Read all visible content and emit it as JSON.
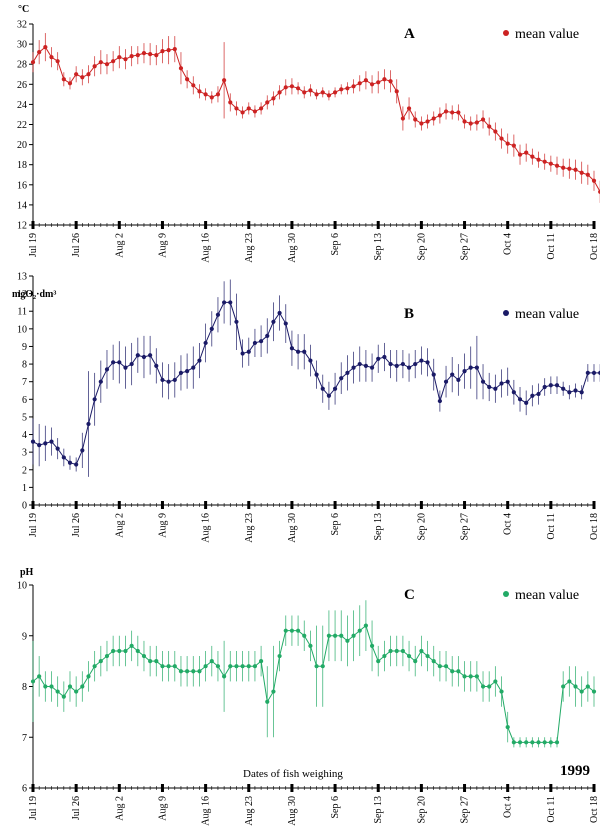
{
  "x_dates": [
    "Jul 19",
    "Jul 26",
    "Aug 2",
    "Aug 9",
    "Aug 16",
    "Aug 23",
    "Aug 30",
    "Sep 6",
    "Sep 13",
    "Sep 20",
    "Sep 27",
    "Oct 4",
    "Oct 11",
    "Oct 18"
  ],
  "x_range": [
    "Jul 19",
    "Oct 18"
  ],
  "xlabel": "Dates of fish weighing",
  "year": "1999",
  "chart_data": [
    {
      "type": "line",
      "panel": "A",
      "ylabel": "°C",
      "legend": "mean value",
      "legend_position": "top-right",
      "color": "#cc2222",
      "ylim": [
        12,
        32
      ],
      "yticks": [
        12,
        14,
        16,
        18,
        20,
        22,
        24,
        26,
        28,
        30,
        32
      ],
      "x_start": "Jul 19",
      "x_step_days": 1,
      "values": [
        28.2,
        29.2,
        29.7,
        28.7,
        28.3,
        26.5,
        26.1,
        27.0,
        26.7,
        27.0,
        27.8,
        28.2,
        28.0,
        28.3,
        28.7,
        28.5,
        28.8,
        28.9,
        29.1,
        29.0,
        28.9,
        29.3,
        29.4,
        29.5,
        27.6,
        26.5,
        25.9,
        25.3,
        25.0,
        24.7,
        25.0,
        26.4,
        24.2,
        23.6,
        23.2,
        23.6,
        23.3,
        23.6,
        24.2,
        24.6,
        25.2,
        25.7,
        25.8,
        25.6,
        25.2,
        25.4,
        25.0,
        25.2,
        24.9,
        25.2,
        25.5,
        25.6,
        25.8,
        26.1,
        26.4,
        26.0,
        26.2,
        26.5,
        26.3,
        25.3,
        22.6,
        23.6,
        22.5,
        22.1,
        22.3,
        22.6,
        22.9,
        23.3,
        23.2,
        23.2,
        22.3,
        22.1,
        22.2,
        22.5,
        21.8,
        21.3,
        20.6,
        20.1,
        19.9,
        19.0,
        19.2,
        18.8,
        18.5,
        18.3,
        18.1,
        17.9,
        17.7,
        17.6,
        17.5,
        17.2,
        17.0,
        16.4,
        15.3,
        15.4
      ],
      "error": [
        1.0,
        1.2,
        1.4,
        1.0,
        0.9,
        0.7,
        0.6,
        0.8,
        0.8,
        0.9,
        1.0,
        1.2,
        1.0,
        1.0,
        1.1,
        1.0,
        1.0,
        0.9,
        1.0,
        1.1,
        1.0,
        1.2,
        1.4,
        1.3,
        1.6,
        0.9,
        0.9,
        0.7,
        0.6,
        0.6,
        0.8,
        3.8,
        0.9,
        0.7,
        0.6,
        0.6,
        0.6,
        0.6,
        0.7,
        0.7,
        0.7,
        0.8,
        0.8,
        0.6,
        0.6,
        0.6,
        0.5,
        0.5,
        0.5,
        0.5,
        0.5,
        0.6,
        0.7,
        0.8,
        0.9,
        0.9,
        1.1,
        1.0,
        1.1,
        1.2,
        1.2,
        1.1,
        0.8,
        0.7,
        0.7,
        0.7,
        0.8,
        0.8,
        0.7,
        0.8,
        0.7,
        0.7,
        0.8,
        0.9,
        0.9,
        0.9,
        1.0,
        1.0,
        1.1,
        1.0,
        0.9,
        0.8,
        0.8,
        0.8,
        0.8,
        0.9,
        0.9,
        1.0,
        1.0,
        1.1,
        1.0,
        1.0,
        1.1,
        1.2
      ]
    },
    {
      "type": "line",
      "panel": "B",
      "ylabel": "mgO₂·dm³",
      "legend": "mean value",
      "legend_position": "top-right",
      "color": "#1a1a66",
      "ylim": [
        0,
        13
      ],
      "yticks": [
        0,
        1,
        2,
        3,
        4,
        5,
        6,
        7,
        8,
        9,
        10,
        11,
        12,
        13
      ],
      "x_start": "Jul 19",
      "x_step_days": 1,
      "values": [
        3.6,
        3.4,
        3.5,
        3.6,
        3.2,
        2.7,
        2.4,
        2.3,
        3.1,
        4.6,
        6.0,
        7.0,
        7.7,
        8.1,
        8.1,
        7.8,
        8.0,
        8.5,
        8.4,
        8.5,
        7.9,
        7.1,
        7.0,
        7.1,
        7.5,
        7.6,
        7.8,
        8.2,
        9.2,
        10.0,
        10.8,
        11.5,
        11.5,
        10.4,
        8.6,
        8.7,
        9.2,
        9.3,
        9.6,
        10.4,
        10.9,
        10.3,
        8.9,
        8.7,
        8.7,
        8.2,
        7.4,
        6.6,
        6.2,
        6.6,
        7.2,
        7.5,
        7.8,
        8.0,
        7.9,
        7.8,
        8.3,
        8.4,
        8.0,
        7.9,
        8.0,
        7.8,
        8.0,
        8.2,
        8.1,
        7.4,
        5.9,
        7.0,
        7.4,
        7.1,
        7.6,
        7.8,
        7.8,
        7.0,
        6.7,
        6.6,
        6.9,
        7.0,
        6.4,
        6.0,
        5.8,
        6.2,
        6.3,
        6.7,
        6.8,
        6.8,
        6.6,
        6.4,
        6.5,
        6.4,
        7.5,
        7.5,
        7.5,
        7.5,
        7.6,
        7.6
      ],
      "error": [
        1.3,
        1.2,
        1.0,
        0.8,
        0.6,
        0.5,
        0.4,
        0.4,
        1.0,
        3.0,
        1.5,
        1.2,
        1.1,
        1.0,
        1.2,
        1.2,
        1.2,
        1.0,
        1.2,
        1.1,
        1.0,
        1.0,
        1.0,
        1.0,
        1.0,
        1.0,
        1.2,
        1.0,
        1.1,
        1.0,
        1.0,
        1.2,
        1.3,
        1.6,
        0.8,
        0.8,
        0.8,
        0.9,
        1.0,
        1.1,
        1.0,
        1.1,
        1.0,
        1.0,
        1.0,
        0.9,
        0.8,
        0.8,
        0.8,
        0.9,
        0.9,
        1.0,
        0.9,
        1.0,
        0.9,
        0.8,
        0.8,
        0.8,
        0.8,
        0.9,
        0.8,
        0.8,
        0.8,
        0.8,
        0.8,
        0.9,
        0.6,
        0.9,
        1.0,
        0.9,
        1.0,
        1.2,
        1.8,
        1.0,
        0.8,
        0.8,
        0.8,
        0.8,
        0.7,
        0.7,
        0.7,
        0.6,
        0.6,
        0.5,
        0.5,
        0.5,
        0.4,
        0.4,
        0.4,
        0.4,
        0.5,
        0.5,
        0.5,
        0.5,
        0.5,
        0.5
      ]
    },
    {
      "type": "line",
      "panel": "C",
      "ylabel": "pH",
      "legend": "mean value",
      "legend_position": "top-right",
      "color": "#22aa66",
      "ylim": [
        6,
        10
      ],
      "yticks": [
        6,
        7,
        8,
        9,
        10
      ],
      "x_start": "Jul 19",
      "x_step_days": 1,
      "values": [
        8.1,
        8.2,
        8.0,
        8.0,
        7.9,
        7.8,
        8.0,
        7.9,
        8.0,
        8.2,
        8.4,
        8.5,
        8.6,
        8.7,
        8.7,
        8.7,
        8.8,
        8.7,
        8.6,
        8.5,
        8.5,
        8.4,
        8.4,
        8.4,
        8.3,
        8.3,
        8.3,
        8.3,
        8.4,
        8.5,
        8.4,
        8.2,
        8.4,
        8.4,
        8.4,
        8.4,
        8.4,
        8.5,
        7.7,
        7.9,
        8.6,
        9.1,
        9.1,
        9.1,
        9.0,
        8.8,
        8.4,
        8.4,
        9.0,
        9.0,
        9.0,
        8.9,
        9.0,
        9.1,
        9.2,
        8.8,
        8.5,
        8.6,
        8.7,
        8.7,
        8.7,
        8.6,
        8.5,
        8.7,
        8.6,
        8.5,
        8.4,
        8.4,
        8.3,
        8.3,
        8.2,
        8.2,
        8.2,
        8.0,
        8.0,
        8.1,
        7.9,
        7.2,
        6.9,
        6.9,
        6.9,
        6.9,
        6.9,
        6.9,
        6.9,
        6.9,
        8.0,
        8.1,
        8.0,
        7.9,
        8.0,
        7.9
      ],
      "error": [
        0.8,
        0.4,
        0.3,
        0.3,
        0.3,
        0.3,
        0.3,
        0.3,
        0.3,
        0.3,
        0.3,
        0.3,
        0.3,
        0.3,
        0.3,
        0.3,
        0.3,
        0.3,
        0.3,
        0.3,
        0.3,
        0.3,
        0.3,
        0.3,
        0.3,
        0.3,
        0.3,
        0.3,
        0.3,
        0.3,
        0.3,
        0.7,
        0.3,
        0.3,
        0.3,
        0.3,
        0.3,
        0.3,
        0.7,
        0.9,
        0.3,
        0.3,
        0.3,
        0.3,
        0.3,
        0.3,
        0.8,
        0.8,
        0.5,
        0.5,
        0.5,
        0.5,
        0.5,
        0.5,
        0.5,
        0.5,
        0.3,
        0.3,
        0.3,
        0.3,
        0.3,
        0.3,
        0.3,
        0.3,
        0.3,
        0.3,
        0.3,
        0.3,
        0.3,
        0.3,
        0.3,
        0.3,
        0.3,
        0.3,
        0.3,
        0.3,
        0.3,
        0.3,
        0.1,
        0.1,
        0.1,
        0.1,
        0.1,
        0.1,
        0.1,
        0.1,
        0.3,
        0.3,
        0.4,
        0.3,
        0.3,
        0.3
      ]
    }
  ]
}
